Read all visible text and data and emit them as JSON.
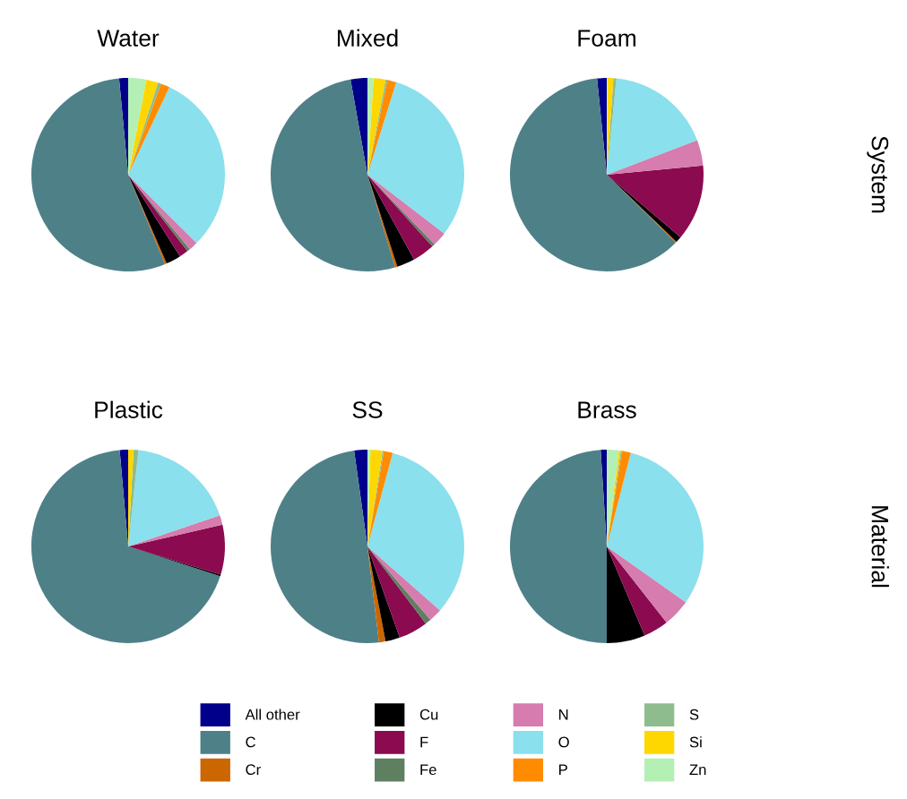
{
  "chart_data": [
    {
      "type": "pie",
      "title": "Water",
      "legend": "bottom",
      "categories": [
        "All other",
        "C",
        "Cr",
        "Cu",
        "F",
        "Fe",
        "N",
        "O",
        "P",
        "S",
        "Si",
        "Zn"
      ],
      "values": [
        1.5,
        54.7,
        0.3,
        2.5,
        1.5,
        0.5,
        1.5,
        30.5,
        1.5,
        0.5,
        2,
        3
      ],
      "colors": [
        "#00008b",
        "#4e8088",
        "#cc6600",
        "#000000",
        "#8b0a50",
        "#5e8060",
        "#d67cae",
        "#8ae0ec",
        "#ff8c00",
        "#8fbc8f",
        "#ffd700",
        "#b4f0b4"
      ]
    },
    {
      "type": "pie",
      "title": "Mixed",
      "categories": [
        null,
        null,
        null,
        null,
        null,
        null,
        null,
        null,
        null,
        null,
        null,
        null
      ],
      "values": [
        2.8,
        51.8,
        0.4,
        3,
        3.7,
        0.5,
        2.4,
        30.6,
        1.5,
        0.3,
        2,
        1
      ],
      "colors": [
        "#00008b",
        "#4e8088",
        "#cc6600",
        "#000000",
        "#8b0a50",
        "#5e8060",
        "#d67cae",
        "#8ae0ec",
        "#ff8c00",
        "#8fbc8f",
        "#ffd700",
        "#b4f0b4"
      ]
    },
    {
      "type": "pie",
      "title": "Foam",
      "annotations": [
        "System"
      ],
      "categories": [
        null,
        null,
        null,
        null,
        null,
        null,
        null,
        null,
        null,
        null,
        null,
        null
      ],
      "values": [
        1.6,
        61,
        0.2,
        1,
        12.7,
        0,
        4.3,
        17.6,
        0,
        0.5,
        1,
        0.1
      ],
      "colors": [
        "#00008b",
        "#4e8088",
        "#cc6600",
        "#000000",
        "#8b0a50",
        "#5e8060",
        "#d67cae",
        "#8ae0ec",
        "#ff8c00",
        "#8fbc8f",
        "#ffd700",
        "#b4f0b4"
      ]
    },
    {
      "type": "pie",
      "title": "Plastic",
      "categories": [
        null,
        null,
        null,
        null,
        null,
        null,
        null,
        null,
        null,
        null,
        null,
        null
      ],
      "values": [
        1.4,
        68.6,
        0,
        0.3,
        8.3,
        0,
        1.6,
        18.1,
        0,
        0.8,
        0.9,
        0
      ],
      "colors": [
        "#00008b",
        "#4e8088",
        "#cc6600",
        "#000000",
        "#8b0a50",
        "#5e8060",
        "#d67cae",
        "#8ae0ec",
        "#ff8c00",
        "#8fbc8f",
        "#ffd700",
        "#b4f0b4"
      ]
    },
    {
      "type": "pie",
      "title": "SS",
      "categories": [
        null,
        null,
        null,
        null,
        null,
        null,
        null,
        null,
        null,
        null,
        null,
        null
      ],
      "values": [
        2.2,
        49.7,
        1.1,
        2.4,
        4.9,
        1,
        2.2,
        32.3,
        1.5,
        0.2,
        2,
        0.5
      ],
      "colors": [
        "#00008b",
        "#4e8088",
        "#cc6600",
        "#000000",
        "#8b0a50",
        "#5e8060",
        "#d67cae",
        "#8ae0ec",
        "#ff8c00",
        "#8fbc8f",
        "#ffd700",
        "#b4f0b4"
      ]
    },
    {
      "type": "pie",
      "title": "Brass",
      "annotations": [
        "Material"
      ],
      "categories": [
        null,
        null,
        null,
        null,
        null,
        null,
        null,
        null,
        null,
        null,
        null,
        null
      ],
      "values": [
        1,
        49,
        0,
        6.4,
        4.2,
        0,
        4.6,
        30.8,
        1.5,
        0.2,
        0.3,
        2
      ],
      "colors": [
        "#00008b",
        "#4e8088",
        "#cc6600",
        "#000000",
        "#8b0a50",
        "#5e8060",
        "#d67cae",
        "#8ae0ec",
        "#ff8c00",
        "#8fbc8f",
        "#ffd700",
        "#b4f0b4"
      ]
    }
  ]
}
